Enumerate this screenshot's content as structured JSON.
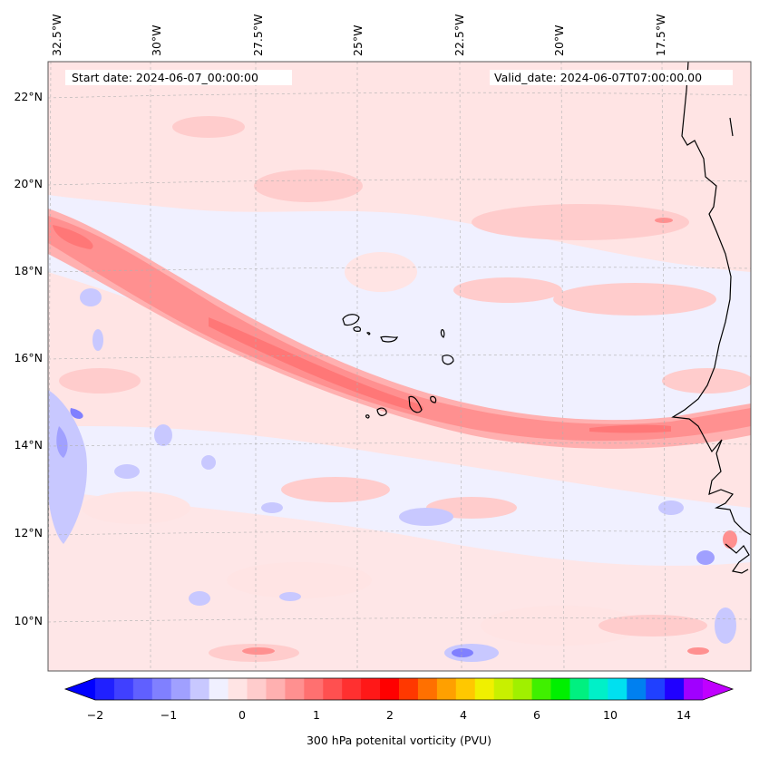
{
  "map": {
    "start_date_text": "Start date: 2024-06-07_00:00:00",
    "valid_date_text": "Valid_date: 2024-06-07T07:00:00.00",
    "longitude_labels": [
      "32.5°W",
      "30°W",
      "27.5°W",
      "25°W",
      "22.5°W",
      "20°W",
      "17.5°W"
    ],
    "latitude_labels": [
      "22°N",
      "20°N",
      "18°N",
      "16°N",
      "14°N",
      "12°N",
      "10°N"
    ],
    "colors": {
      "background_field": "#f0f0ff",
      "coastline": "#000000",
      "gridline": "#b0b0b0"
    }
  },
  "colorbar": {
    "title": "300 hPa potenital vorticity (PVU)",
    "tick_labels": [
      "−2",
      "−1",
      "0",
      "1",
      "2",
      "4",
      "6",
      "10",
      "14"
    ],
    "levels_colors": [
      "#2020ff",
      "#4040ff",
      "#6060ff",
      "#8080ff",
      "#a0a0ff",
      "#c8c8ff",
      "#f0f0ff",
      "#ffe4e4",
      "#ffcccc",
      "#ffb0b0",
      "#ff9090",
      "#ff7070",
      "#ff5050",
      "#ff3030",
      "#ff1818",
      "#ff0000",
      "#ff3800",
      "#ff7000",
      "#ffa000",
      "#ffc800",
      "#f0f000",
      "#c8f000",
      "#a0f000",
      "#40f000",
      "#00f000",
      "#00f080",
      "#00f0c8",
      "#00e0f0",
      "#0080f0",
      "#2040ff",
      "#2000ff",
      "#a000ff"
    ],
    "under_color": "#0000ff",
    "over_color": "#c000ff"
  }
}
